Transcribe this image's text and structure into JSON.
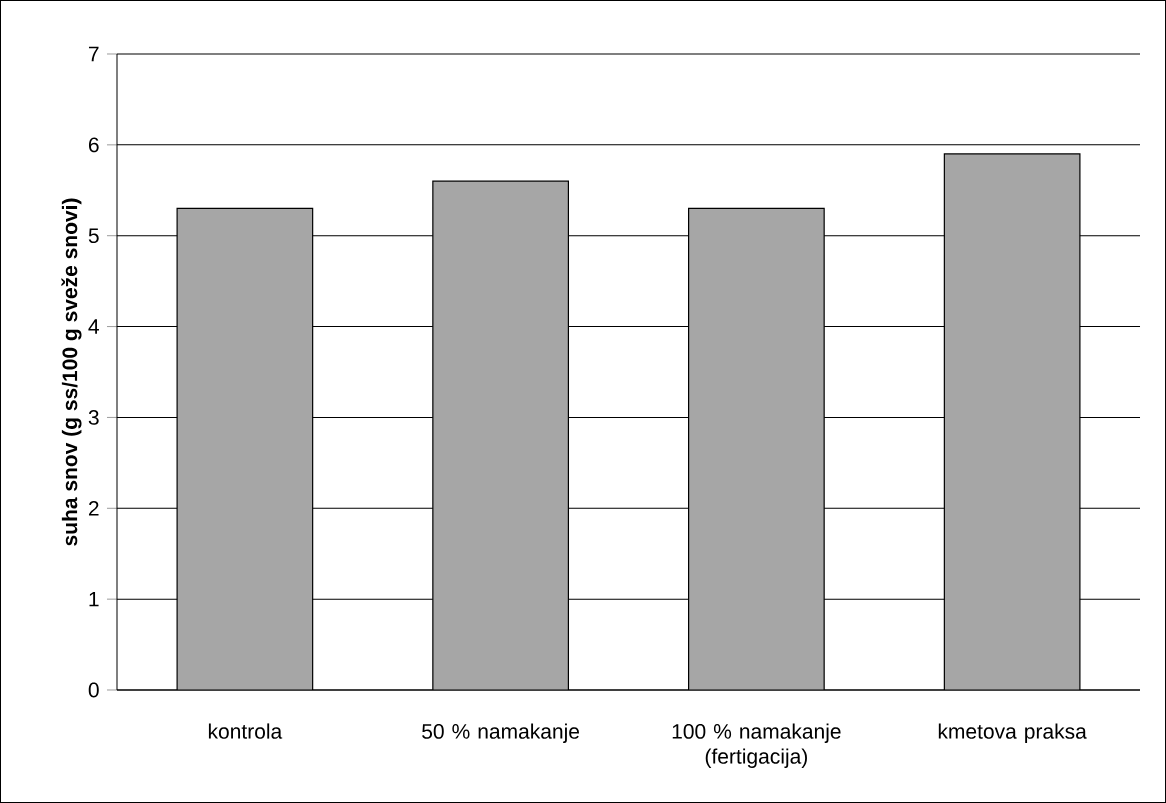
{
  "chart_data": {
    "type": "bar",
    "ylabel": "suha snov (g ss/100 g sveže snovi)",
    "categories": [
      "kontrola",
      "50 % namakanje",
      "100 % namakanje (fertigacija)",
      "kmetova praksa"
    ],
    "values": [
      5.3,
      5.6,
      5.3,
      5.9
    ],
    "color": "#a6a6a6",
    "ylim": [
      0,
      7
    ],
    "yticks": [
      0,
      1,
      2,
      3,
      4,
      5,
      6,
      7
    ],
    "grid": "y"
  }
}
